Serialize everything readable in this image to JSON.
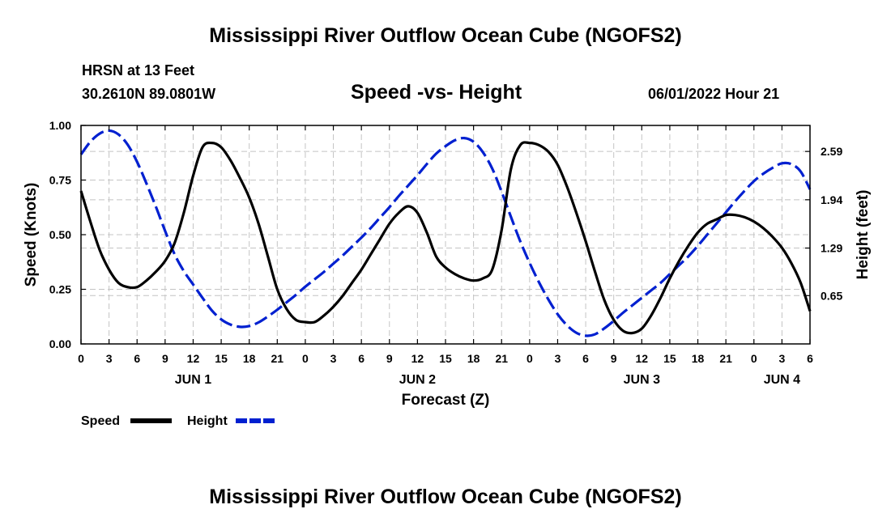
{
  "header": {
    "main_title": "Mississippi River Outflow Ocean Cube (NGOFS2)",
    "station": "HRSN at 13 Feet",
    "coordinates": "30.2610N  89.0801W",
    "subtitle": "Speed -vs- Height",
    "timestamp": "06/01/2022 Hour 21",
    "repeat_title": "Mississippi River Outflow Ocean Cube (NGOFS2)"
  },
  "chart_data": {
    "type": "line",
    "title": "Speed -vs- Height",
    "xlabel": "Forecast (Z)",
    "ylabel": "Speed (Knots)",
    "y2label": "Height (feet)",
    "x_unit": "forecast hours from 00Z JUN 1",
    "xlim": [
      0,
      78
    ],
    "ylim": [
      0,
      1.0
    ],
    "y2lim": [
      0.0,
      2.94
    ],
    "x_ticks": [
      0,
      3,
      6,
      9,
      12,
      15,
      18,
      21,
      24,
      27,
      30,
      33,
      36,
      39,
      42,
      45,
      48,
      51,
      54,
      57,
      60,
      63,
      66,
      69,
      72,
      75,
      78
    ],
    "x_tick_labels": [
      "0",
      "3",
      "6",
      "9",
      "12",
      "15",
      "18",
      "21",
      "0",
      "3",
      "6",
      "9",
      "12",
      "15",
      "18",
      "21",
      "0",
      "3",
      "6",
      "9",
      "12",
      "15",
      "18",
      "21",
      "0",
      "3",
      "6"
    ],
    "y_ticks": [
      0.0,
      0.25,
      0.5,
      0.75,
      1.0
    ],
    "y_tick_labels": [
      "0.00",
      "0.25",
      "0.50",
      "0.75",
      "1.00"
    ],
    "y2_ticks": [
      0.65,
      1.29,
      1.94,
      2.59
    ],
    "y2_tick_labels": [
      "0.65",
      "1.29",
      "1.94",
      "2.59"
    ],
    "day_labels": [
      {
        "x": 12,
        "label": "JUN 1"
      },
      {
        "x": 36,
        "label": "JUN 2"
      },
      {
        "x": 60,
        "label": "JUN 3"
      },
      {
        "x": 75,
        "label": "JUN 4"
      }
    ],
    "grid": true,
    "legend_position": "bottom-left",
    "series": [
      {
        "name": "Speed",
        "axis": "left",
        "color": "#000000",
        "style": "solid",
        "x": [
          0,
          1,
          2,
          3,
          4,
          5,
          6,
          7,
          8,
          9,
          10,
          11,
          12,
          13,
          14,
          15,
          16,
          17,
          18,
          19,
          20,
          21,
          22,
          23,
          24,
          25,
          26,
          27,
          28,
          29,
          30,
          31,
          32,
          33,
          34,
          35,
          36,
          37,
          38,
          39,
          40,
          41,
          42,
          43,
          44,
          45,
          46,
          47,
          48,
          49,
          50,
          51,
          52,
          53,
          54,
          55,
          56,
          57,
          58,
          59,
          60,
          61,
          62,
          63,
          64,
          65,
          66,
          67,
          68,
          69,
          70,
          71,
          72,
          73,
          74,
          75,
          76,
          77,
          78
        ],
        "values": [
          0.7,
          0.56,
          0.43,
          0.34,
          0.28,
          0.26,
          0.26,
          0.29,
          0.33,
          0.38,
          0.46,
          0.6,
          0.77,
          0.9,
          0.92,
          0.9,
          0.84,
          0.76,
          0.67,
          0.55,
          0.4,
          0.25,
          0.16,
          0.11,
          0.1,
          0.1,
          0.13,
          0.17,
          0.22,
          0.28,
          0.34,
          0.41,
          0.48,
          0.55,
          0.6,
          0.63,
          0.6,
          0.51,
          0.4,
          0.35,
          0.32,
          0.3,
          0.29,
          0.3,
          0.34,
          0.52,
          0.8,
          0.91,
          0.92,
          0.91,
          0.88,
          0.82,
          0.72,
          0.6,
          0.47,
          0.33,
          0.2,
          0.11,
          0.06,
          0.05,
          0.07,
          0.13,
          0.21,
          0.3,
          0.38,
          0.45,
          0.51,
          0.55,
          0.57,
          0.59,
          0.59,
          0.58,
          0.56,
          0.53,
          0.49,
          0.44,
          0.37,
          0.28,
          0.15
        ]
      },
      {
        "name": "Height",
        "axis": "right",
        "color": "#0020d0",
        "style": "dashed",
        "x": [
          0,
          1,
          2,
          3,
          4,
          5,
          6,
          7,
          8,
          9,
          10,
          11,
          12,
          13,
          14,
          15,
          16,
          17,
          18,
          19,
          20,
          21,
          22,
          23,
          24,
          25,
          26,
          27,
          28,
          29,
          30,
          31,
          32,
          33,
          34,
          35,
          36,
          37,
          38,
          39,
          40,
          41,
          42,
          43,
          44,
          45,
          46,
          47,
          48,
          49,
          50,
          51,
          52,
          53,
          54,
          55,
          56,
          57,
          58,
          59,
          60,
          61,
          62,
          63,
          64,
          65,
          66,
          67,
          68,
          69,
          70,
          71,
          72,
          73,
          74,
          75,
          76,
          77,
          78
        ],
        "values": [
          2.55,
          2.72,
          2.83,
          2.87,
          2.82,
          2.68,
          2.45,
          2.16,
          1.85,
          1.52,
          1.21,
          0.98,
          0.8,
          0.62,
          0.45,
          0.33,
          0.26,
          0.23,
          0.24,
          0.29,
          0.37,
          0.46,
          0.56,
          0.66,
          0.77,
          0.87,
          0.97,
          1.08,
          1.19,
          1.31,
          1.43,
          1.56,
          1.7,
          1.84,
          1.99,
          2.13,
          2.27,
          2.42,
          2.56,
          2.66,
          2.74,
          2.77,
          2.72,
          2.58,
          2.36,
          2.05,
          1.71,
          1.38,
          1.09,
          0.83,
          0.6,
          0.4,
          0.25,
          0.15,
          0.11,
          0.13,
          0.21,
          0.31,
          0.42,
          0.52,
          0.62,
          0.72,
          0.82,
          0.94,
          1.06,
          1.18,
          1.32,
          1.47,
          1.62,
          1.77,
          1.92,
          2.06,
          2.19,
          2.29,
          2.37,
          2.43,
          2.42,
          2.32,
          2.08
        ]
      }
    ]
  },
  "legend": {
    "speed_label": "Speed",
    "height_label": "Height"
  }
}
